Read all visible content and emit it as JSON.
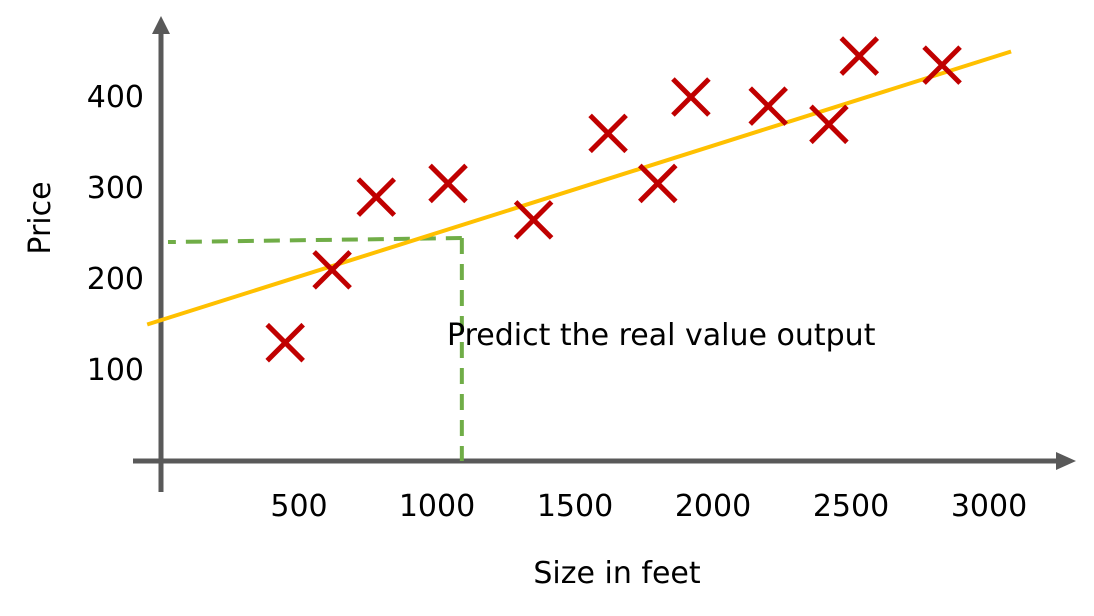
{
  "chart_data": {
    "type": "scatter",
    "xlabel": "Size in feet",
    "ylabel": "Price",
    "x_ticks": [
      500,
      1000,
      1500,
      2000,
      2500,
      3000
    ],
    "y_ticks": [
      100,
      200,
      300,
      400
    ],
    "xlim": [
      0,
      3200
    ],
    "ylim": [
      0,
      500
    ],
    "grid": false,
    "series": [
      {
        "marker": "x",
        "color": "#c00000",
        "points": [
          {
            "x": 450,
            "y": 130
          },
          {
            "x": 620,
            "y": 210
          },
          {
            "x": 780,
            "y": 290
          },
          {
            "x": 1040,
            "y": 305
          },
          {
            "x": 1350,
            "y": 265
          },
          {
            "x": 1620,
            "y": 360
          },
          {
            "x": 1800,
            "y": 305
          },
          {
            "x": 1920,
            "y": 400
          },
          {
            "x": 2200,
            "y": 390
          },
          {
            "x": 2420,
            "y": 370
          },
          {
            "x": 2530,
            "y": 445
          },
          {
            "x": 2830,
            "y": 435
          }
        ]
      }
    ],
    "fit_line": {
      "color": "#ffc000",
      "x": [
        -50,
        3080
      ],
      "y": [
        150,
        450
      ]
    },
    "prediction": {
      "color": "#70ad47",
      "x": 1090,
      "y": 245
    },
    "annotation": "Predict the real value output"
  }
}
